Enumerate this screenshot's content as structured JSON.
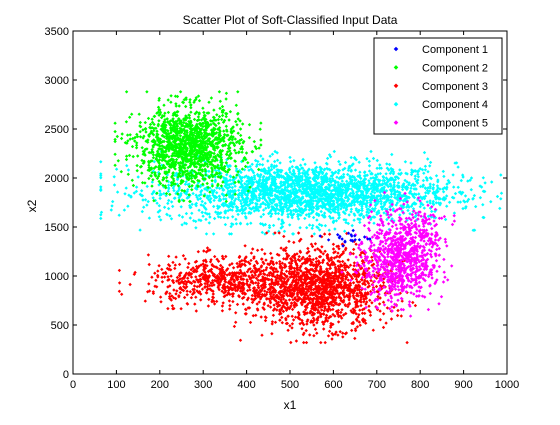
{
  "chart_data": {
    "type": "scatter",
    "title": "Scatter Plot of Soft-Classified Input Data",
    "xlabel": "x1",
    "ylabel": "x2",
    "xlim": [
      0,
      1000
    ],
    "ylim": [
      0,
      3500
    ],
    "xticks": [
      "0",
      "100",
      "200",
      "300",
      "400",
      "500",
      "600",
      "700",
      "800",
      "900",
      "1000"
    ],
    "yticks": [
      "0",
      "500",
      "1000",
      "1500",
      "2000",
      "2500",
      "3000",
      "3500"
    ],
    "grid": false,
    "legend_position": "top-right",
    "series": [
      {
        "name": "Component 1",
        "color": "#0000ff",
        "marker": "diamond",
        "clusters": [
          {
            "cx": 635,
            "cy": 1390,
            "sx": 25,
            "sy": 35,
            "n": 22,
            "rot": 0
          }
        ]
      },
      {
        "name": "Component 2",
        "color": "#00ff00",
        "marker": "diamond",
        "clusters": [
          {
            "cx": 265,
            "cy": 2320,
            "sx": 60,
            "sy": 200,
            "n": 1400,
            "rot": 0
          }
        ]
      },
      {
        "name": "Component 3",
        "color": "#ff0000",
        "marker": "diamond",
        "clusters": [
          {
            "cx": 345,
            "cy": 950,
            "sx": 85,
            "sy": 120,
            "n": 600,
            "rot": 0
          },
          {
            "cx": 565,
            "cy": 880,
            "sx": 80,
            "sy": 200,
            "n": 1500,
            "rot": 0
          }
        ]
      },
      {
        "name": "Component 4",
        "color": "#00ffff",
        "marker": "diamond",
        "clusters": [
          {
            "cx": 540,
            "cy": 1850,
            "sx": 170,
            "sy": 150,
            "n": 2500,
            "rot": 0
          }
        ]
      },
      {
        "name": "Component 5",
        "color": "#ff00ff",
        "marker": "diamond",
        "clusters": [
          {
            "cx": 758,
            "cy": 1200,
            "sx": 42,
            "sy": 240,
            "n": 900,
            "rot": 0.35
          }
        ]
      }
    ]
  }
}
